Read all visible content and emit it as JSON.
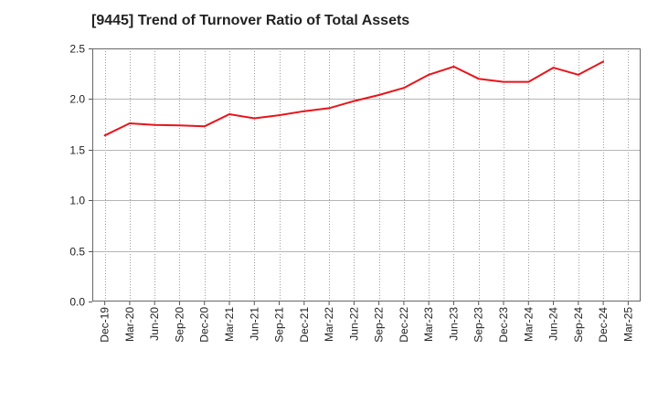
{
  "chart_data": {
    "type": "line",
    "title": "[9445]  Trend of Turnover Ratio of Total Assets",
    "xlabel": "",
    "ylabel": "",
    "ylim": [
      0,
      2.5
    ],
    "yticks": [
      "0.0",
      "0.5",
      "1.0",
      "1.5",
      "2.0",
      "2.5"
    ],
    "x_tick_labels": [
      "Dec-19",
      "Mar-20",
      "Jun-20",
      "Sep-20",
      "Dec-20",
      "Mar-21",
      "Jun-21",
      "Sep-21",
      "Dec-21",
      "Mar-22",
      "Jun-22",
      "Sep-22",
      "Dec-22",
      "Mar-23",
      "Jun-23",
      "Sep-23",
      "Dec-23",
      "Mar-24",
      "Jun-24",
      "Sep-24",
      "Dec-24",
      "Mar-25"
    ],
    "grid": true,
    "line_color": "#e8141b",
    "series": [
      {
        "x": [
          "Dec-19",
          "Mar-20",
          "Jun-20",
          "Sep-20",
          "Dec-20",
          "Mar-21",
          "Jun-21",
          "Sep-21",
          "Dec-21",
          "Mar-22",
          "Jun-22",
          "Sep-22",
          "Dec-22",
          "Mar-23",
          "Jun-23",
          "Sep-23",
          "Dec-23",
          "Mar-24",
          "Jun-24",
          "Sep-24",
          "Dec-24"
        ],
        "values": [
          1.64,
          1.76,
          1.745,
          1.74,
          1.73,
          1.85,
          1.81,
          1.84,
          1.88,
          1.91,
          1.98,
          2.04,
          2.11,
          2.24,
          2.32,
          2.2,
          2.17,
          2.17,
          2.31,
          2.24,
          2.37
        ]
      }
    ]
  }
}
